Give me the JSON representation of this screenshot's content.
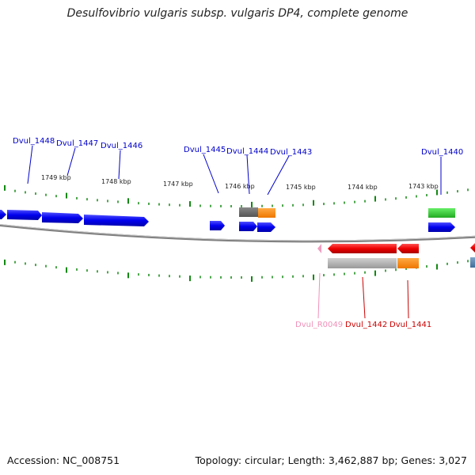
{
  "title": "Desulfovibrio vulgaris subsp. vulgaris DP4, complete genome",
  "footer": {
    "accession": "Accession: NC_008751",
    "stats": "Topology: circular; Length: 3,462,887 bp; Genes: 3,027"
  },
  "colors": {
    "forward_cds": "#0000ee",
    "reverse_cds": "#ee0000",
    "trna_reverse": "#f09cc0",
    "gray_feature": "#666666",
    "orange_feature": "#ff8800",
    "green_feature": "#22cc22",
    "light_gray_feature": "#b0b0b0",
    "backbone": "#888888",
    "tick": "#118811",
    "label_blue": "#0000cc",
    "label_red": "#cc0000",
    "label_pink": "#f090b8"
  },
  "ruler": {
    "labels": [
      "1749 kbp",
      "1748 kbp",
      "1747 kbp",
      "1746 kbp",
      "1745 kbp",
      "1744 kbp",
      "1743 kbp"
    ]
  },
  "gene_labels_top": [
    "Dvul_1448",
    "Dvul_1447",
    "Dvul_1446",
    "Dvul_1445",
    "Dvul_1444",
    "Dvul_1443",
    "Dvul_1440"
  ],
  "gene_labels_bottom": [
    "Dvul_R0049",
    "Dvul_1442",
    "Dvul_1441"
  ]
}
